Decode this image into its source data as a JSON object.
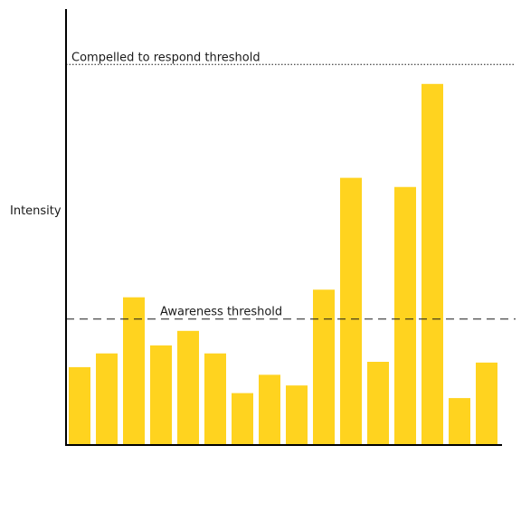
{
  "chart_data": {
    "type": "bar",
    "title": "",
    "xlabel": "",
    "ylabel": "Intensity",
    "ylim": [
      0,
      100
    ],
    "bar_color": "#FFD31F",
    "values": [
      20.4,
      24.0,
      38.7,
      26.1,
      29.9,
      24.0,
      13.6,
      18.4,
      15.6,
      40.7,
      70.0,
      21.8,
      67.6,
      94.6,
      12.3,
      21.6
    ],
    "thresholds": [
      {
        "label": "Awareness threshold",
        "value": 33.0,
        "style": "dashed"
      },
      {
        "label": "Compelled to respond threshold",
        "value": 99.7,
        "style": "dotted"
      }
    ]
  }
}
